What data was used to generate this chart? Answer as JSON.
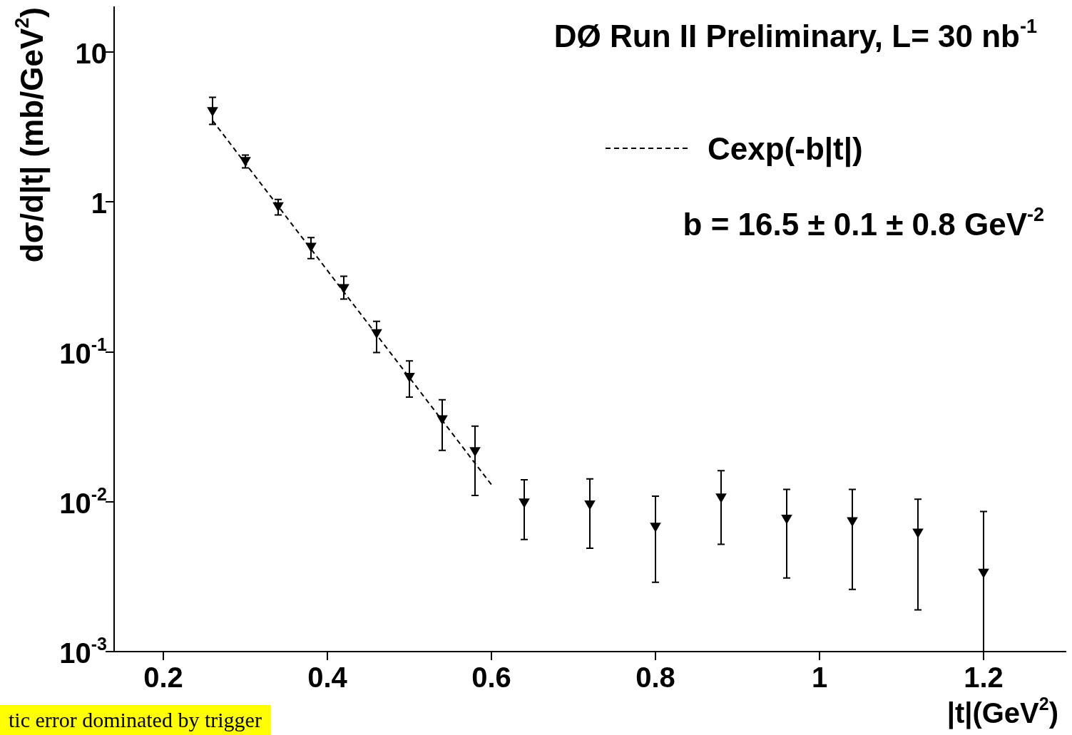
{
  "chart_data": {
    "type": "scatter",
    "xlabel": "|t|(GeV$^{2}$)",
    "ylabel": "dσ/d|t| (mb/GeV$^{2}$)",
    "annotations": [
      "DØ Run II Preliminary, L= 30 nb$^{-1}$",
      "b = 16.5 ± 0.1 ± 0.8 GeV$^{-2}$",
      "tic error dominated by trigger"
    ],
    "log": "y",
    "grid": false,
    "legend": "top right",
    "xlim": [
      0.14,
      1.3
    ],
    "xticks": [
      0.2,
      0.4,
      0.6,
      0.8,
      1,
      1.2
    ],
    "ylim": [
      0.001,
      20
    ],
    "yticks": [
      {
        "value": 0.001,
        "label": "10$^{-3}$"
      },
      {
        "value": 0.01,
        "label": "10$^{-2}$"
      },
      {
        "value": 0.1,
        "label": "10$^{-1}$"
      },
      1,
      10
    ],
    "series": [
      {
        "color": "#000000",
        "marker": "triangle",
        "x": [
          0.26,
          0.3,
          0.34,
          0.38,
          0.42,
          0.46,
          0.5,
          0.54,
          0.58,
          0.64,
          0.72,
          0.8,
          0.88,
          0.96,
          1.04,
          1.12,
          1.2
        ],
        "values": [
          4.1,
          1.9,
          0.95,
          0.51,
          0.27,
          0.135,
          0.069,
          0.036,
          0.022,
          0.01,
          0.0097,
          0.0069,
          0.0108,
          0.0078,
          0.0075,
          0.0063,
          0.0034
        ],
        "errors": [
          [
            3.3,
            5.0
          ],
          [
            1.69,
            2.06
          ],
          [
            0.82,
            1.04
          ],
          [
            0.42,
            0.58
          ],
          [
            0.225,
            0.32
          ],
          [
            0.099,
            0.16
          ],
          [
            0.05,
            0.087
          ],
          [
            0.022,
            0.048
          ],
          [
            0.011,
            0.032
          ],
          [
            0.0056,
            0.014
          ],
          [
            0.0049,
            0.0142
          ],
          [
            0.0029,
            0.0109
          ],
          [
            0.0052,
            0.0161
          ],
          [
            0.0031,
            0.0121
          ],
          [
            0.0026,
            0.0121
          ],
          [
            0.0019,
            0.0104
          ],
          [
            0.001,
            0.0086
          ]
        ]
      },
      {
        "type": "line",
        "name": "Cexp(-b|t|)",
        "color": "#000000",
        "marker": "none",
        "line_style": "dashed",
        "x": [
          0.26,
          0.6
        ],
        "values": [
          3.5,
          0.013
        ]
      }
    ]
  }
}
